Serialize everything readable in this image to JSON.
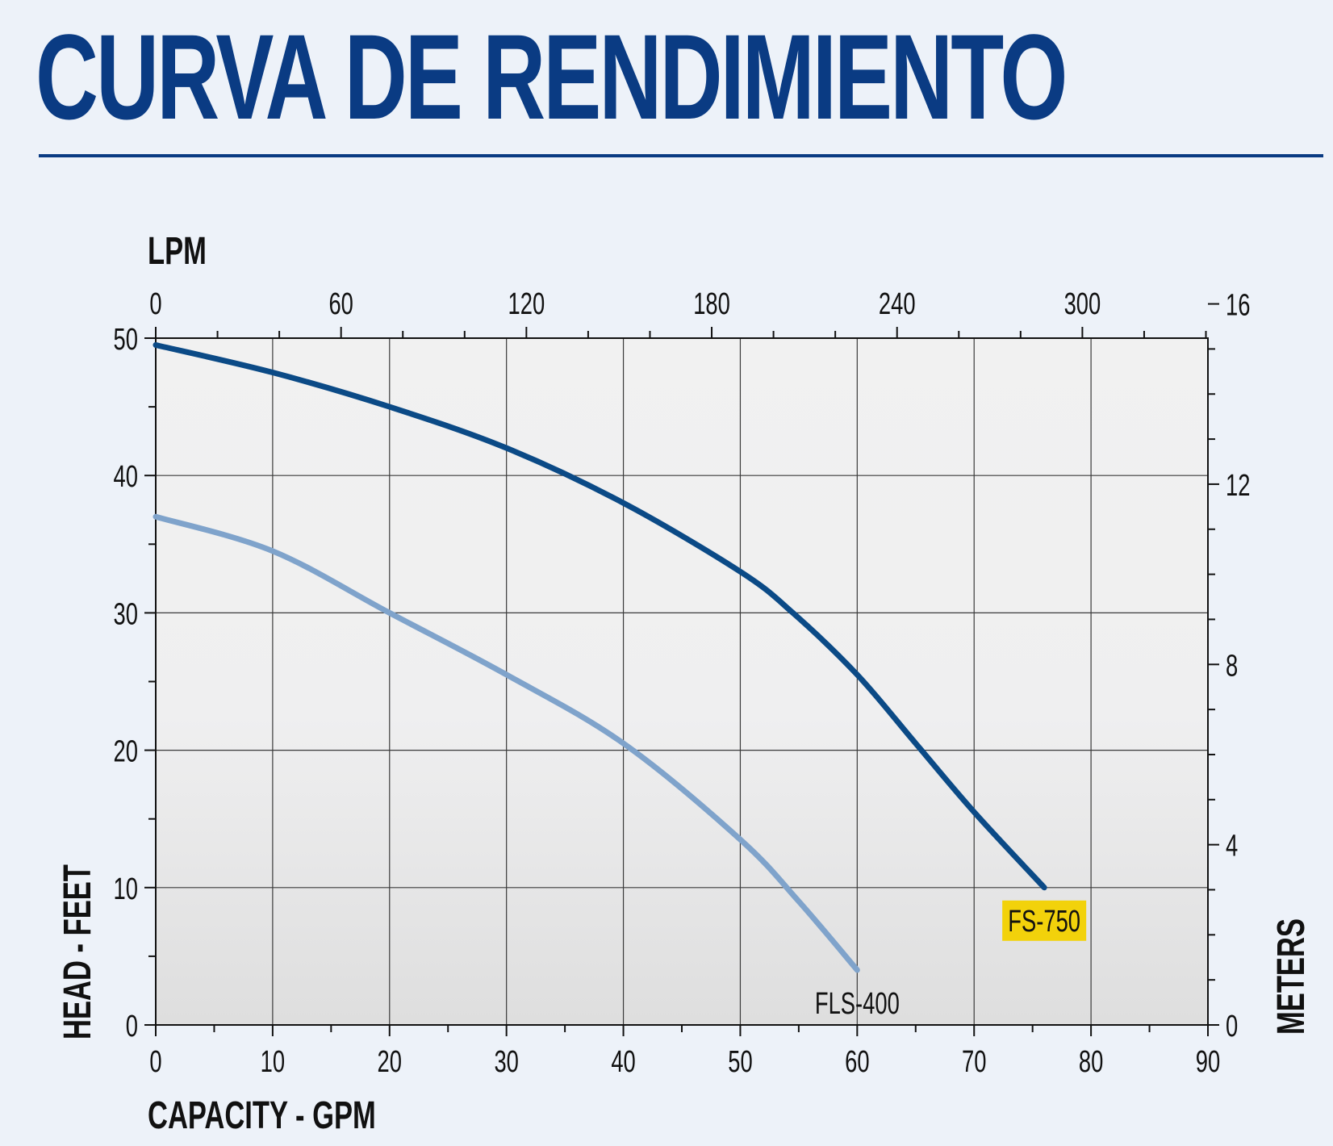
{
  "title": "CURVA DE RENDIMIENTO",
  "chart_data": {
    "type": "line",
    "x_axis": {
      "label": "CAPACITY - GPM",
      "range": [
        0,
        90
      ],
      "ticks": [
        0,
        10,
        20,
        30,
        40,
        50,
        60,
        70,
        80,
        90
      ]
    },
    "x2_axis": {
      "label": "LPM",
      "ticks": [
        0,
        60,
        120,
        180,
        240,
        300
      ]
    },
    "y_axis": {
      "label": "HEAD - FEET",
      "range": [
        0,
        50
      ],
      "ticks": [
        0,
        10,
        20,
        30,
        40,
        50
      ]
    },
    "y2_axis": {
      "label": "METERS",
      "ticks": [
        0,
        4,
        8,
        12,
        16
      ]
    },
    "grid": true,
    "series": [
      {
        "name": "FS-750",
        "color": "#0b4a86",
        "label_highlight": "#f2d20b",
        "x": [
          0,
          10,
          20,
          30,
          40,
          50,
          54.5,
          60,
          65,
          70,
          76
        ],
        "y": [
          49.5,
          47.5,
          45,
          42,
          38,
          33,
          30,
          25.5,
          20.5,
          15.5,
          10
        ]
      },
      {
        "name": "FLS-400",
        "color": "#7fa3cb",
        "label_highlight": "",
        "x": [
          0,
          10,
          20,
          30,
          40,
          50,
          55,
          60
        ],
        "y": [
          37,
          34.5,
          30,
          25.5,
          20.5,
          13.5,
          9,
          4
        ]
      }
    ]
  }
}
